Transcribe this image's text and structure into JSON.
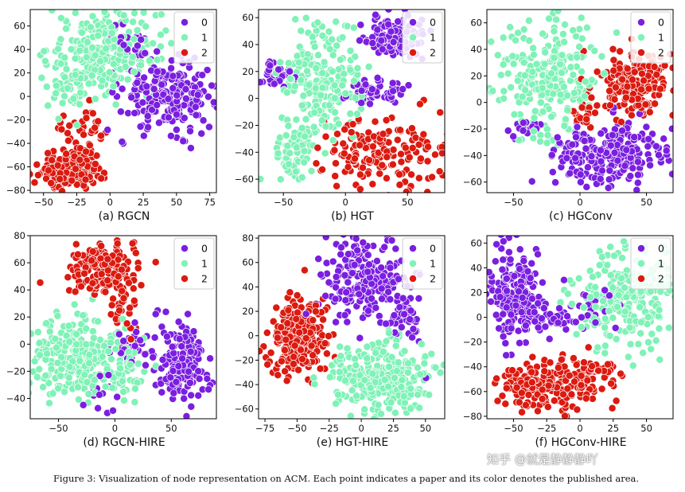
{
  "figure_caption": "Figure 3: Visualization of node representation on ACM. Each point indicates a paper and its color denotes the published area.",
  "watermark": "知乎 @就是静静静吖",
  "legend": {
    "labels": [
      "0",
      "1",
      "2"
    ]
  },
  "colors": {
    "0": "#7a1fe0",
    "1": "#80f2b7",
    "2": "#dc1a10",
    "point_edge": "#ffffff",
    "axis": "#000000"
  },
  "chart_data": [
    {
      "type": "scatter",
      "caption": "(a) RGCN",
      "xlim": [
        -60,
        80
      ],
      "ylim": [
        -82,
        74
      ],
      "xticks": [
        -50,
        -25,
        0,
        25,
        50,
        75
      ],
      "yticks": [
        -80,
        -60,
        -40,
        -20,
        0,
        20,
        40,
        60
      ],
      "legend_position": "top-right",
      "series": [
        {
          "name": "0",
          "clusters": [
            {
              "x": 45,
              "y": 0,
              "sx": 18,
              "sy": 14,
              "n": 240
            },
            {
              "x": 15,
              "y": 35,
              "sx": 8,
              "sy": 12,
              "n": 30
            }
          ]
        },
        {
          "name": "1",
          "clusters": [
            {
              "x": -5,
              "y": 40,
              "sx": 20,
              "sy": 18,
              "n": 240
            },
            {
              "x": -30,
              "y": 5,
              "sx": 10,
              "sy": 10,
              "n": 40
            }
          ]
        },
        {
          "name": "2",
          "clusters": [
            {
              "x": -30,
              "y": -62,
              "sx": 12,
              "sy": 8,
              "n": 230
            },
            {
              "x": -20,
              "y": -30,
              "sx": 8,
              "sy": 10,
              "n": 40
            }
          ]
        }
      ]
    },
    {
      "type": "scatter",
      "caption": "(b) HGT",
      "xlim": [
        -70,
        80
      ],
      "ylim": [
        -70,
        66
      ],
      "xticks": [
        -50,
        0,
        50
      ],
      "yticks": [
        -60,
        -40,
        -20,
        0,
        20,
        40,
        60
      ],
      "legend_position": "top-right",
      "series": [
        {
          "name": "0",
          "clusters": [
            {
              "x": 40,
              "y": 45,
              "sx": 12,
              "sy": 8,
              "n": 130
            },
            {
              "x": 28,
              "y": 5,
              "sx": 12,
              "sy": 5,
              "n": 60
            },
            {
              "x": -55,
              "y": 18,
              "sx": 6,
              "sy": 5,
              "n": 35
            }
          ]
        },
        {
          "name": "1",
          "clusters": [
            {
              "x": -20,
              "y": 10,
              "sx": 16,
              "sy": 22,
              "n": 220
            },
            {
              "x": -40,
              "y": -40,
              "sx": 10,
              "sy": 10,
              "n": 60
            }
          ]
        },
        {
          "name": "2",
          "clusters": [
            {
              "x": 30,
              "y": -40,
              "sx": 25,
              "sy": 12,
              "n": 170
            }
          ]
        }
      ]
    },
    {
      "type": "scatter",
      "caption": "(c) HGConv",
      "xlim": [
        -70,
        70
      ],
      "ylim": [
        -68,
        70
      ],
      "xticks": [
        -50,
        0,
        50
      ],
      "yticks": [
        -60,
        -40,
        -20,
        0,
        20,
        40,
        60
      ],
      "legend_position": "top-right",
      "series": [
        {
          "name": "0",
          "clusters": [
            {
              "x": 20,
              "y": -40,
              "sx": 22,
              "sy": 12,
              "n": 250
            },
            {
              "x": -40,
              "y": -20,
              "sx": 6,
              "sy": 6,
              "n": 20
            }
          ]
        },
        {
          "name": "1",
          "clusters": [
            {
              "x": -25,
              "y": 20,
              "sx": 20,
              "sy": 22,
              "n": 250
            }
          ]
        },
        {
          "name": "2",
          "clusters": [
            {
              "x": 40,
              "y": 15,
              "sx": 15,
              "sy": 12,
              "n": 180
            },
            {
              "x": 5,
              "y": -10,
              "sx": 8,
              "sy": 6,
              "n": 20
            }
          ]
        }
      ]
    },
    {
      "type": "scatter",
      "caption": "(d) RGCN-HIRE",
      "xlim": [
        -75,
        90
      ],
      "ylim": [
        -55,
        80
      ],
      "xticks": [
        -50,
        0,
        50
      ],
      "yticks": [
        -40,
        -20,
        0,
        20,
        40,
        60,
        80
      ],
      "legend_position": "top-right",
      "series": [
        {
          "name": "0",
          "clusters": [
            {
              "x": 60,
              "y": -15,
              "sx": 12,
              "sy": 15,
              "n": 170
            },
            {
              "x": 15,
              "y": 0,
              "sx": 8,
              "sy": 8,
              "n": 40
            },
            {
              "x": -10,
              "y": -35,
              "sx": 8,
              "sy": 8,
              "n": 15
            }
          ]
        },
        {
          "name": "1",
          "clusters": [
            {
              "x": -35,
              "y": -10,
              "sx": 20,
              "sy": 15,
              "n": 250
            },
            {
              "x": 10,
              "y": -20,
              "sx": 8,
              "sy": 14,
              "n": 50
            }
          ]
        },
        {
          "name": "2",
          "clusters": [
            {
              "x": -10,
              "y": 55,
              "sx": 15,
              "sy": 10,
              "n": 180
            },
            {
              "x": 10,
              "y": 28,
              "sx": 6,
              "sy": 10,
              "n": 30
            }
          ]
        }
      ]
    },
    {
      "type": "scatter",
      "caption": "(e) HGT-HIRE",
      "xlim": [
        -80,
        65
      ],
      "ylim": [
        -68,
        82
      ],
      "xticks": [
        -75,
        -50,
        -25,
        0,
        25,
        50
      ],
      "yticks": [
        -60,
        -40,
        -20,
        0,
        20,
        40,
        60,
        80
      ],
      "legend_position": "top-right",
      "series": [
        {
          "name": "0",
          "clusters": [
            {
              "x": 5,
              "y": 45,
              "sx": 18,
              "sy": 18,
              "n": 220
            },
            {
              "x": 35,
              "y": 10,
              "sx": 8,
              "sy": 10,
              "n": 30
            }
          ]
        },
        {
          "name": "1",
          "clusters": [
            {
              "x": 15,
              "y": -35,
              "sx": 22,
              "sy": 16,
              "n": 280
            }
          ]
        },
        {
          "name": "2",
          "clusters": [
            {
              "x": -50,
              "y": 0,
              "sx": 12,
              "sy": 16,
              "n": 230
            }
          ]
        }
      ]
    },
    {
      "type": "scatter",
      "caption": "(f) HGConv-HIRE",
      "xlim": [
        -70,
        70
      ],
      "ylim": [
        -82,
        66
      ],
      "xticks": [
        -50,
        -25,
        0,
        25,
        50
      ],
      "yticks": [
        -80,
        -60,
        -40,
        -20,
        0,
        20,
        40,
        60
      ],
      "legend_position": "top-right",
      "series": [
        {
          "name": "0",
          "clusters": [
            {
              "x": -50,
              "y": 20,
              "sx": 10,
              "sy": 18,
              "n": 200
            },
            {
              "x": -20,
              "y": 0,
              "sx": 15,
              "sy": 5,
              "n": 40
            },
            {
              "x": 15,
              "y": 10,
              "sx": 10,
              "sy": 8,
              "n": 20
            }
          ]
        },
        {
          "name": "1",
          "clusters": [
            {
              "x": 35,
              "y": 15,
              "sx": 20,
              "sy": 20,
              "n": 250
            }
          ]
        },
        {
          "name": "2",
          "clusters": [
            {
              "x": -20,
              "y": -55,
              "sx": 20,
              "sy": 10,
              "n": 200
            },
            {
              "x": 15,
              "y": -45,
              "sx": 8,
              "sy": 6,
              "n": 30
            }
          ]
        }
      ]
    }
  ]
}
